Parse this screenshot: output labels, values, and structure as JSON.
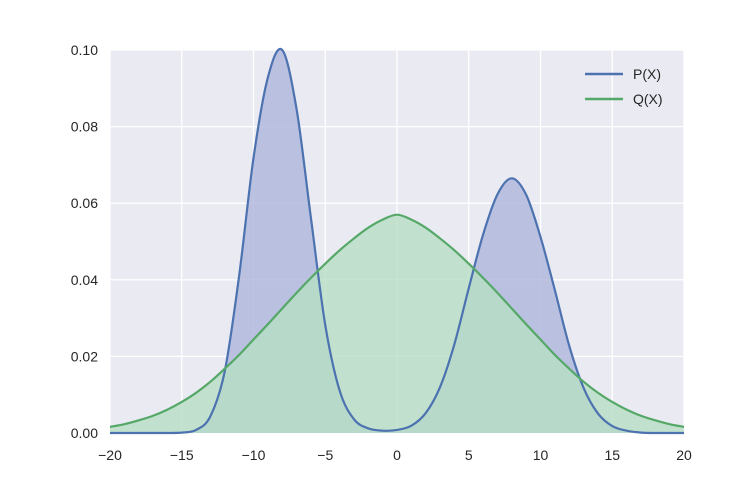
{
  "chart_data": {
    "type": "area",
    "xlim": [
      -20,
      20
    ],
    "ylim": [
      0,
      0.1
    ],
    "grid": true,
    "legend_position": "top-right",
    "x_ticks": [
      "−20",
      "−15",
      "−10",
      "−5",
      "0",
      "5",
      "10",
      "15",
      "20"
    ],
    "y_ticks": [
      "0.00",
      "0.02",
      "0.04",
      "0.06",
      "0.08",
      "0.10"
    ],
    "x": [
      -20,
      -19,
      -18,
      -17,
      -16,
      -15,
      -14,
      -13,
      -12,
      -11,
      -10,
      -9,
      -8,
      -7,
      -6,
      -5,
      -4,
      -3,
      -2,
      -1,
      0,
      1,
      2,
      3,
      4,
      5,
      6,
      7,
      8,
      9,
      10,
      11,
      12,
      13,
      14,
      15,
      16,
      17,
      18,
      19,
      20
    ],
    "series": [
      {
        "name": "P(X)",
        "color": "#4c72b0",
        "fill": "#b2b9dc",
        "values": [
          0,
          0,
          0,
          0,
          0,
          0.0001,
          0.0008,
          0.0044,
          0.0162,
          0.0411,
          0.0718,
          0.0928,
          0.1,
          0.0846,
          0.0562,
          0.0282,
          0.0111,
          0.0036,
          0.0012,
          0.0006,
          0.0008,
          0.0019,
          0.0052,
          0.012,
          0.0232,
          0.0378,
          0.0518,
          0.0623,
          0.0665,
          0.0622,
          0.0512,
          0.0373,
          0.0228,
          0.0118,
          0.0051,
          0.0018,
          0.0006,
          0.0001,
          0,
          0,
          0
        ]
      },
      {
        "name": "Q(X)",
        "color": "#55a868",
        "fill": "#b6dfc4",
        "values": [
          0.0016,
          0.0023,
          0.0033,
          0.0045,
          0.0061,
          0.0081,
          0.0105,
          0.0134,
          0.0168,
          0.0204,
          0.0244,
          0.0284,
          0.0325,
          0.0366,
          0.0405,
          0.0442,
          0.0477,
          0.0508,
          0.0536,
          0.0557,
          0.057,
          0.0557,
          0.0536,
          0.0508,
          0.0477,
          0.0442,
          0.0405,
          0.0366,
          0.0325,
          0.0284,
          0.0244,
          0.0204,
          0.0168,
          0.0134,
          0.0105,
          0.0081,
          0.0061,
          0.0045,
          0.0033,
          0.0023,
          0.0016
        ]
      }
    ]
  }
}
